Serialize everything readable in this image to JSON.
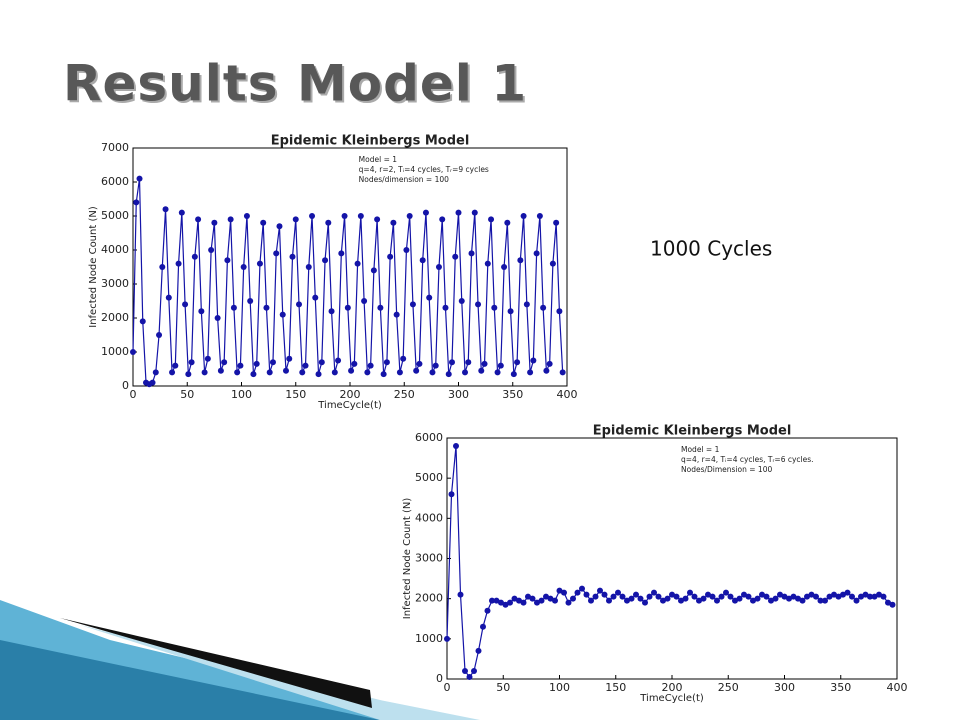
{
  "title": "Results Model 1",
  "note": "1000 Cycles",
  "chart_data": [
    {
      "type": "line",
      "title": "Epidemic Kleinbergs Model",
      "annotations": [
        "Model = 1",
        "q=4, r=2, Tᵢ=4 cycles, Tᵣ=9 cycles",
        "Nodes/dimension = 100"
      ],
      "xlabel": "TimeCycle(t)",
      "ylabel": "Infected Node Count (N)",
      "x": [
        0,
        3,
        6,
        9,
        12,
        15,
        18,
        21,
        24,
        27,
        30,
        33,
        36,
        39,
        42,
        45,
        48,
        51,
        54,
        57,
        60,
        63,
        66,
        69,
        72,
        75,
        78,
        81,
        84,
        87,
        90,
        93,
        96,
        99,
        102,
        105,
        108,
        111,
        114,
        117,
        120,
        123,
        126,
        129,
        132,
        135,
        138,
        141,
        144,
        147,
        150,
        153,
        156,
        159,
        162,
        165,
        168,
        171,
        174,
        177,
        180,
        183,
        186,
        189,
        192,
        195,
        198,
        201,
        204,
        207,
        210,
        213,
        216,
        219,
        222,
        225,
        228,
        231,
        234,
        237,
        240,
        243,
        246,
        249,
        252,
        255,
        258,
        261,
        264,
        267,
        270,
        273,
        276,
        279,
        282,
        285,
        288,
        291,
        294,
        297,
        300,
        303,
        306,
        309,
        312,
        315,
        318,
        321,
        324,
        327,
        330,
        333,
        336,
        339,
        342,
        345,
        348,
        351,
        354,
        357,
        360,
        363,
        366,
        369,
        372,
        375,
        378,
        381,
        384,
        387,
        390,
        393,
        396
      ],
      "series": [
        {
          "color": "#1414a8",
          "values": [
            1000,
            5400,
            6100,
            1900,
            100,
            50,
            100,
            400,
            1500,
            3500,
            5200,
            2600,
            400,
            600,
            3600,
            5100,
            2400,
            350,
            700,
            3800,
            4900,
            2200,
            400,
            800,
            4000,
            4800,
            2000,
            450,
            700,
            3700,
            4900,
            2300,
            400,
            600,
            3500,
            5000,
            2500,
            350,
            650,
            3600,
            4800,
            2300,
            400,
            700,
            3900,
            4700,
            2100,
            450,
            800,
            3800,
            4900,
            2400,
            400,
            600,
            3500,
            5000,
            2600,
            350,
            700,
            3700,
            4800,
            2200,
            400,
            750,
            3900,
            5000,
            2300,
            450,
            650,
            3600,
            5000,
            2500,
            400,
            600,
            3400,
            4900,
            2300,
            350,
            700,
            3800,
            4800,
            2100,
            400,
            800,
            4000,
            5000,
            2400,
            450,
            650,
            3700,
            5100,
            2600,
            400,
            600,
            3500,
            4900,
            2300,
            350,
            700,
            3800,
            5100,
            2500,
            400,
            700,
            3900,
            5100,
            2400,
            450,
            650,
            3600,
            4900,
            2300,
            400,
            600,
            3500,
            4800,
            2200,
            350,
            700,
            3700,
            5000,
            2400,
            400,
            750,
            3900,
            5000,
            2300,
            450,
            650,
            3600,
            4800,
            2200,
            400
          ]
        }
      ],
      "xlim": [
        0,
        400
      ],
      "ylim": [
        0,
        7000
      ],
      "xticks": [
        0,
        50,
        100,
        150,
        200,
        250,
        300,
        350,
        400
      ],
      "yticks": [
        0,
        1000,
        2000,
        3000,
        4000,
        5000,
        6000,
        7000
      ]
    },
    {
      "type": "line",
      "title": "Epidemic Kleinbergs Model",
      "annotations": [
        "Model = 1",
        "q=4, r=4, Tᵢ=4 cycles, Tᵣ=6 cycles.",
        "Nodes/Dimension = 100"
      ],
      "xlabel": "TimeCycle(t)",
      "ylabel": "Infected Node Count (N)",
      "x": [
        0,
        4,
        8,
        12,
        16,
        20,
        24,
        28,
        32,
        36,
        40,
        44,
        48,
        52,
        56,
        60,
        64,
        68,
        72,
        76,
        80,
        84,
        88,
        92,
        96,
        100,
        104,
        108,
        112,
        116,
        120,
        124,
        128,
        132,
        136,
        140,
        144,
        148,
        152,
        156,
        160,
        164,
        168,
        172,
        176,
        180,
        184,
        188,
        192,
        196,
        200,
        204,
        208,
        212,
        216,
        220,
        224,
        228,
        232,
        236,
        240,
        244,
        248,
        252,
        256,
        260,
        264,
        268,
        272,
        276,
        280,
        284,
        288,
        292,
        296,
        300,
        304,
        308,
        312,
        316,
        320,
        324,
        328,
        332,
        336,
        340,
        344,
        348,
        352,
        356,
        360,
        364,
        368,
        372,
        376,
        380,
        384,
        388,
        392,
        396
      ],
      "series": [
        {
          "color": "#1414a8",
          "values": [
            1000,
            4600,
            5800,
            2100,
            200,
            50,
            200,
            700,
            1300,
            1700,
            1950,
            1950,
            1900,
            1850,
            1900,
            2000,
            1950,
            1900,
            2050,
            2000,
            1900,
            1950,
            2050,
            2000,
            1950,
            2200,
            2150,
            1900,
            2000,
            2150,
            2250,
            2100,
            1950,
            2050,
            2200,
            2100,
            1950,
            2050,
            2150,
            2050,
            1950,
            2000,
            2100,
            2000,
            1900,
            2050,
            2150,
            2050,
            1950,
            2000,
            2100,
            2050,
            1950,
            2000,
            2150,
            2050,
            1950,
            2000,
            2100,
            2050,
            1950,
            2050,
            2150,
            2050,
            1950,
            2000,
            2100,
            2050,
            1950,
            2000,
            2100,
            2050,
            1950,
            2000,
            2100,
            2050,
            2000,
            2050,
            2000,
            1950,
            2050,
            2100,
            2050,
            1950,
            1950,
            2050,
            2100,
            2050,
            2100,
            2150,
            2050,
            1950,
            2050,
            2100,
            2050,
            2050,
            2100,
            2050,
            1900,
            1850
          ]
        }
      ],
      "xlim": [
        0,
        400
      ],
      "ylim": [
        0,
        6000
      ],
      "xticks": [
        0,
        50,
        100,
        150,
        200,
        250,
        300,
        350,
        400
      ],
      "yticks": [
        0,
        1000,
        2000,
        3000,
        4000,
        5000,
        6000
      ]
    }
  ]
}
